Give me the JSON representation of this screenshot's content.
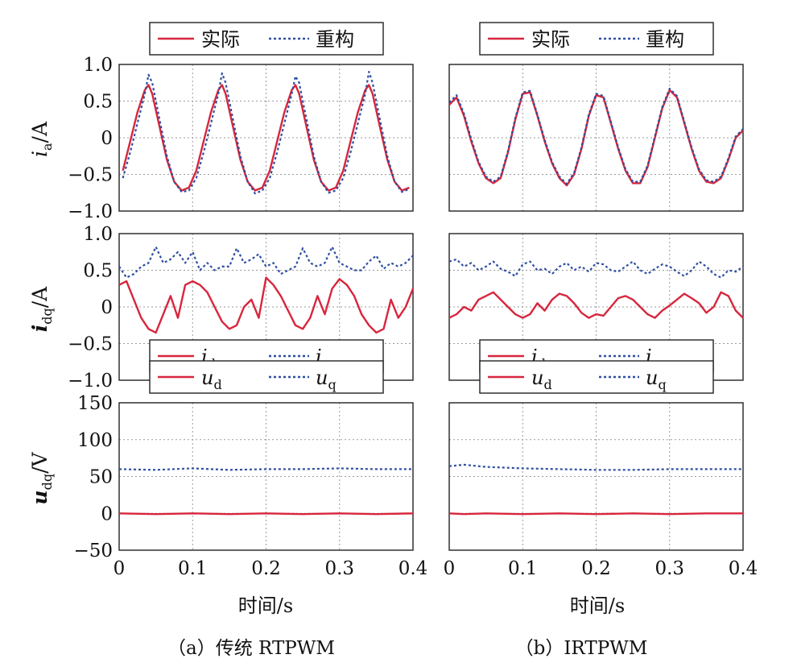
{
  "colors": {
    "actual": "#d7263d",
    "recon": "#2f4f9f",
    "grid": "#9a9a9a",
    "axis": "#222222"
  },
  "captions": {
    "a": "（a）传统 RTPWM",
    "b": "（b）IRTPWM"
  },
  "xlabel": "时间/s",
  "xticks": [
    0,
    0.1,
    0.2,
    0.3,
    0.4
  ],
  "xtick_labels": [
    "0",
    "0.1",
    "0.2",
    "0.3",
    "0.4"
  ],
  "chart_data": [
    {
      "type": "line",
      "panel": "a-ia",
      "ylabel": "i_a/A",
      "xlim": [
        0,
        0.4
      ],
      "ylim": [
        -1.0,
        1.0
      ],
      "yticks": [
        -1.0,
        -0.5,
        0,
        0.5,
        1.0
      ],
      "ytick_labels": [
        "−1.0",
        "−0.5",
        "0",
        "0.5",
        "1.0"
      ],
      "legend": [
        "实际",
        "重构"
      ],
      "legend_pos": "top",
      "x": [
        0.005,
        0.015,
        0.025,
        0.035,
        0.04,
        0.045,
        0.055,
        0.065,
        0.075,
        0.085,
        0.095,
        0.105,
        0.115,
        0.125,
        0.135,
        0.14,
        0.145,
        0.155,
        0.165,
        0.175,
        0.185,
        0.195,
        0.205,
        0.215,
        0.225,
        0.235,
        0.24,
        0.245,
        0.255,
        0.265,
        0.275,
        0.285,
        0.295,
        0.305,
        0.315,
        0.325,
        0.335,
        0.34,
        0.345,
        0.355,
        0.365,
        0.375,
        0.385,
        0.395
      ],
      "series": [
        {
          "name": "实际",
          "values": [
            -0.45,
            -0.05,
            0.35,
            0.65,
            0.72,
            0.6,
            0.15,
            -0.3,
            -0.6,
            -0.72,
            -0.68,
            -0.45,
            -0.05,
            0.35,
            0.65,
            0.72,
            0.6,
            0.15,
            -0.3,
            -0.6,
            -0.72,
            -0.68,
            -0.45,
            -0.05,
            0.35,
            0.65,
            0.72,
            0.6,
            0.15,
            -0.3,
            -0.6,
            -0.72,
            -0.68,
            -0.45,
            -0.05,
            0.35,
            0.65,
            0.72,
            0.6,
            0.15,
            -0.3,
            -0.6,
            -0.72,
            -0.68
          ]
        },
        {
          "name": "重构",
          "values": [
            -0.55,
            -0.2,
            0.2,
            0.6,
            0.86,
            0.75,
            0.25,
            -0.25,
            -0.6,
            -0.74,
            -0.72,
            -0.55,
            -0.2,
            0.2,
            0.6,
            0.88,
            0.75,
            0.25,
            -0.25,
            -0.6,
            -0.76,
            -0.72,
            -0.55,
            -0.2,
            0.2,
            0.6,
            0.84,
            0.75,
            0.25,
            -0.25,
            -0.6,
            -0.75,
            -0.72,
            -0.55,
            -0.2,
            0.2,
            0.6,
            0.9,
            0.75,
            0.25,
            -0.25,
            -0.6,
            -0.74,
            -0.7
          ]
        }
      ]
    },
    {
      "type": "line",
      "panel": "b-ia",
      "ylabel": "",
      "xlim": [
        0,
        0.4
      ],
      "ylim": [
        -1.0,
        1.0
      ],
      "yticks": [
        -1.0,
        -0.5,
        0,
        0.5,
        1.0
      ],
      "legend": [
        "实际",
        "重构"
      ],
      "legend_pos": "top",
      "x": [
        0.0,
        0.01,
        0.02,
        0.03,
        0.04,
        0.05,
        0.06,
        0.07,
        0.08,
        0.09,
        0.1,
        0.11,
        0.12,
        0.13,
        0.14,
        0.15,
        0.16,
        0.17,
        0.18,
        0.19,
        0.2,
        0.21,
        0.22,
        0.23,
        0.24,
        0.25,
        0.26,
        0.27,
        0.28,
        0.29,
        0.3,
        0.31,
        0.32,
        0.33,
        0.34,
        0.35,
        0.36,
        0.37,
        0.38,
        0.39,
        0.4
      ],
      "series": [
        {
          "name": "实际",
          "values": [
            0.45,
            0.55,
            0.3,
            -0.05,
            -0.35,
            -0.55,
            -0.62,
            -0.55,
            -0.2,
            0.25,
            0.6,
            0.62,
            0.3,
            -0.05,
            -0.35,
            -0.55,
            -0.65,
            -0.5,
            -0.15,
            0.3,
            0.58,
            0.55,
            0.2,
            -0.15,
            -0.45,
            -0.62,
            -0.62,
            -0.4,
            0.0,
            0.4,
            0.65,
            0.55,
            0.2,
            -0.15,
            -0.45,
            -0.6,
            -0.62,
            -0.55,
            -0.3,
            0.0,
            0.1
          ]
        },
        {
          "name": "重构",
          "values": [
            0.48,
            0.58,
            0.33,
            -0.02,
            -0.33,
            -0.53,
            -0.6,
            -0.53,
            -0.18,
            0.27,
            0.62,
            0.64,
            0.32,
            -0.03,
            -0.33,
            -0.53,
            -0.63,
            -0.48,
            -0.13,
            0.32,
            0.6,
            0.57,
            0.22,
            -0.13,
            -0.43,
            -0.6,
            -0.6,
            -0.38,
            0.02,
            0.42,
            0.67,
            0.57,
            0.22,
            -0.13,
            -0.43,
            -0.58,
            -0.6,
            -0.53,
            -0.28,
            0.02,
            0.12
          ]
        }
      ]
    },
    {
      "type": "line",
      "panel": "a-idq",
      "ylabel": "i_dq/A",
      "xlim": [
        0,
        0.4
      ],
      "ylim": [
        -1.0,
        1.0
      ],
      "yticks": [
        -1.0,
        -0.5,
        0,
        0.5,
        1.0
      ],
      "ytick_labels": [
        "−1.0",
        "−0.5",
        "0",
        "0.5",
        "1.0"
      ],
      "legend": [
        "i_d",
        "i_q"
      ],
      "legend_pos": "bottom",
      "x": [
        0.0,
        0.01,
        0.02,
        0.03,
        0.04,
        0.05,
        0.06,
        0.07,
        0.08,
        0.09,
        0.1,
        0.11,
        0.12,
        0.13,
        0.14,
        0.15,
        0.16,
        0.17,
        0.18,
        0.19,
        0.2,
        0.21,
        0.22,
        0.23,
        0.24,
        0.25,
        0.26,
        0.27,
        0.28,
        0.29,
        0.3,
        0.31,
        0.32,
        0.33,
        0.34,
        0.35,
        0.36,
        0.37,
        0.38,
        0.39,
        0.4
      ],
      "series": [
        {
          "name": "i_d",
          "values": [
            0.3,
            0.35,
            0.1,
            -0.15,
            -0.3,
            -0.35,
            -0.1,
            0.15,
            -0.15,
            0.3,
            0.35,
            0.3,
            0.2,
            0.0,
            -0.2,
            -0.3,
            -0.25,
            0.0,
            0.1,
            -0.15,
            0.4,
            0.3,
            0.15,
            -0.05,
            -0.25,
            -0.3,
            -0.15,
            0.15,
            -0.1,
            0.25,
            0.38,
            0.3,
            0.15,
            -0.1,
            -0.25,
            -0.35,
            -0.3,
            0.1,
            -0.15,
            0.0,
            0.25
          ]
        },
        {
          "name": "i_q",
          "values": [
            0.55,
            0.4,
            0.45,
            0.55,
            0.6,
            0.82,
            0.6,
            0.65,
            0.75,
            0.6,
            0.75,
            0.5,
            0.6,
            0.5,
            0.55,
            0.55,
            0.8,
            0.6,
            0.65,
            0.72,
            0.55,
            0.6,
            0.45,
            0.5,
            0.55,
            0.8,
            0.6,
            0.55,
            0.6,
            0.82,
            0.6,
            0.55,
            0.5,
            0.5,
            0.62,
            0.7,
            0.52,
            0.6,
            0.55,
            0.6,
            0.7
          ]
        }
      ]
    },
    {
      "type": "line",
      "panel": "b-idq",
      "ylabel": "",
      "xlim": [
        0,
        0.4
      ],
      "ylim": [
        -1.0,
        1.0
      ],
      "yticks": [
        -1.0,
        -0.5,
        0,
        0.5,
        1.0
      ],
      "legend": [
        "i_d",
        "i_q"
      ],
      "legend_pos": "bottom",
      "x": [
        0.0,
        0.01,
        0.02,
        0.03,
        0.04,
        0.05,
        0.06,
        0.07,
        0.08,
        0.09,
        0.1,
        0.11,
        0.12,
        0.13,
        0.14,
        0.15,
        0.16,
        0.17,
        0.18,
        0.19,
        0.2,
        0.21,
        0.22,
        0.23,
        0.24,
        0.25,
        0.26,
        0.27,
        0.28,
        0.29,
        0.3,
        0.31,
        0.32,
        0.33,
        0.34,
        0.35,
        0.36,
        0.37,
        0.38,
        0.39,
        0.4
      ],
      "series": [
        {
          "name": "i_d",
          "values": [
            -0.15,
            -0.1,
            0.0,
            -0.05,
            0.1,
            0.15,
            0.2,
            0.1,
            0.0,
            -0.1,
            -0.15,
            -0.1,
            0.05,
            -0.05,
            0.1,
            0.18,
            0.15,
            0.05,
            -0.08,
            -0.15,
            -0.1,
            -0.12,
            0.0,
            0.12,
            0.15,
            0.1,
            0.0,
            -0.1,
            -0.15,
            -0.05,
            0.02,
            0.1,
            0.18,
            0.12,
            0.05,
            -0.08,
            0.0,
            0.2,
            0.15,
            -0.05,
            -0.15
          ]
        },
        {
          "name": "i_q",
          "values": [
            0.62,
            0.65,
            0.55,
            0.6,
            0.5,
            0.55,
            0.62,
            0.52,
            0.48,
            0.42,
            0.58,
            0.62,
            0.5,
            0.52,
            0.45,
            0.55,
            0.6,
            0.5,
            0.55,
            0.48,
            0.6,
            0.58,
            0.5,
            0.48,
            0.55,
            0.62,
            0.5,
            0.45,
            0.52,
            0.58,
            0.55,
            0.48,
            0.42,
            0.5,
            0.62,
            0.55,
            0.45,
            0.4,
            0.5,
            0.48,
            0.55
          ]
        }
      ]
    },
    {
      "type": "line",
      "panel": "a-udq",
      "ylabel": "u_dq/V",
      "xlim": [
        0,
        0.4
      ],
      "ylim": [
        -50,
        150
      ],
      "yticks": [
        -50,
        0,
        50,
        100,
        150
      ],
      "ytick_labels": [
        "−50",
        "0",
        "50",
        "100",
        "150"
      ],
      "legend": [
        "u_d",
        "u_q"
      ],
      "legend_pos": "top",
      "x": [
        0.0,
        0.05,
        0.1,
        0.15,
        0.2,
        0.25,
        0.3,
        0.35,
        0.4
      ],
      "series": [
        {
          "name": "u_d",
          "values": [
            0,
            -1,
            0,
            -1,
            0,
            -1,
            0,
            -1,
            0
          ]
        },
        {
          "name": "u_q",
          "values": [
            60,
            59,
            61,
            59,
            60,
            60,
            61,
            60,
            60
          ]
        }
      ]
    },
    {
      "type": "line",
      "panel": "b-udq",
      "ylabel": "",
      "xlim": [
        0,
        0.4
      ],
      "ylim": [
        -50,
        150
      ],
      "yticks": [
        -50,
        0,
        50,
        100,
        150
      ],
      "legend": [
        "u_d",
        "u_q"
      ],
      "legend_pos": "top",
      "x": [
        0.0,
        0.02,
        0.05,
        0.1,
        0.15,
        0.2,
        0.25,
        0.3,
        0.35,
        0.4
      ],
      "series": [
        {
          "name": "u_d",
          "values": [
            0,
            -1,
            0,
            -1,
            0,
            -1,
            0,
            -1,
            0,
            0
          ]
        },
        {
          "name": "u_q",
          "values": [
            64,
            66,
            63,
            61,
            60,
            59,
            59,
            60,
            60,
            60
          ]
        }
      ]
    }
  ]
}
